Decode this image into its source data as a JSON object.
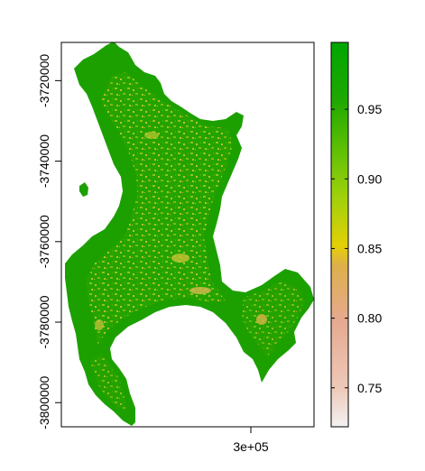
{
  "chart_data": {
    "type": "heatmap",
    "title": "",
    "xlabel": "",
    "ylabel": "",
    "x_ticks": [
      {
        "value": 300000,
        "label": "3e+05"
      }
    ],
    "y_ticks": [
      {
        "value": -3720000,
        "label": "-3720000"
      },
      {
        "value": -3740000,
        "label": "-3740000"
      },
      {
        "value": -3760000,
        "label": "-3760000"
      },
      {
        "value": -3780000,
        "label": "-3780000"
      },
      {
        "value": -3800000,
        "label": "-3800000"
      }
    ],
    "xlim": [
      250500,
      316500
    ],
    "ylim": [
      -3806000,
      -3710500
    ],
    "legend": {
      "placement": "right",
      "range": [
        0.722,
        0.998
      ],
      "ticks": [
        {
          "value": 0.75,
          "label": "0.75"
        },
        {
          "value": 0.8,
          "label": "0.80"
        },
        {
          "value": 0.85,
          "label": "0.85"
        },
        {
          "value": 0.9,
          "label": "0.90"
        },
        {
          "value": 0.95,
          "label": "0.95"
        }
      ],
      "colors": [
        "#f2f2f2",
        "#eec9b8",
        "#e6a98f",
        "#ddb04a",
        "#e3d007",
        "#9ed10b",
        "#5ec004",
        "#1fa800",
        "#00a600"
      ]
    },
    "grid": false
  }
}
